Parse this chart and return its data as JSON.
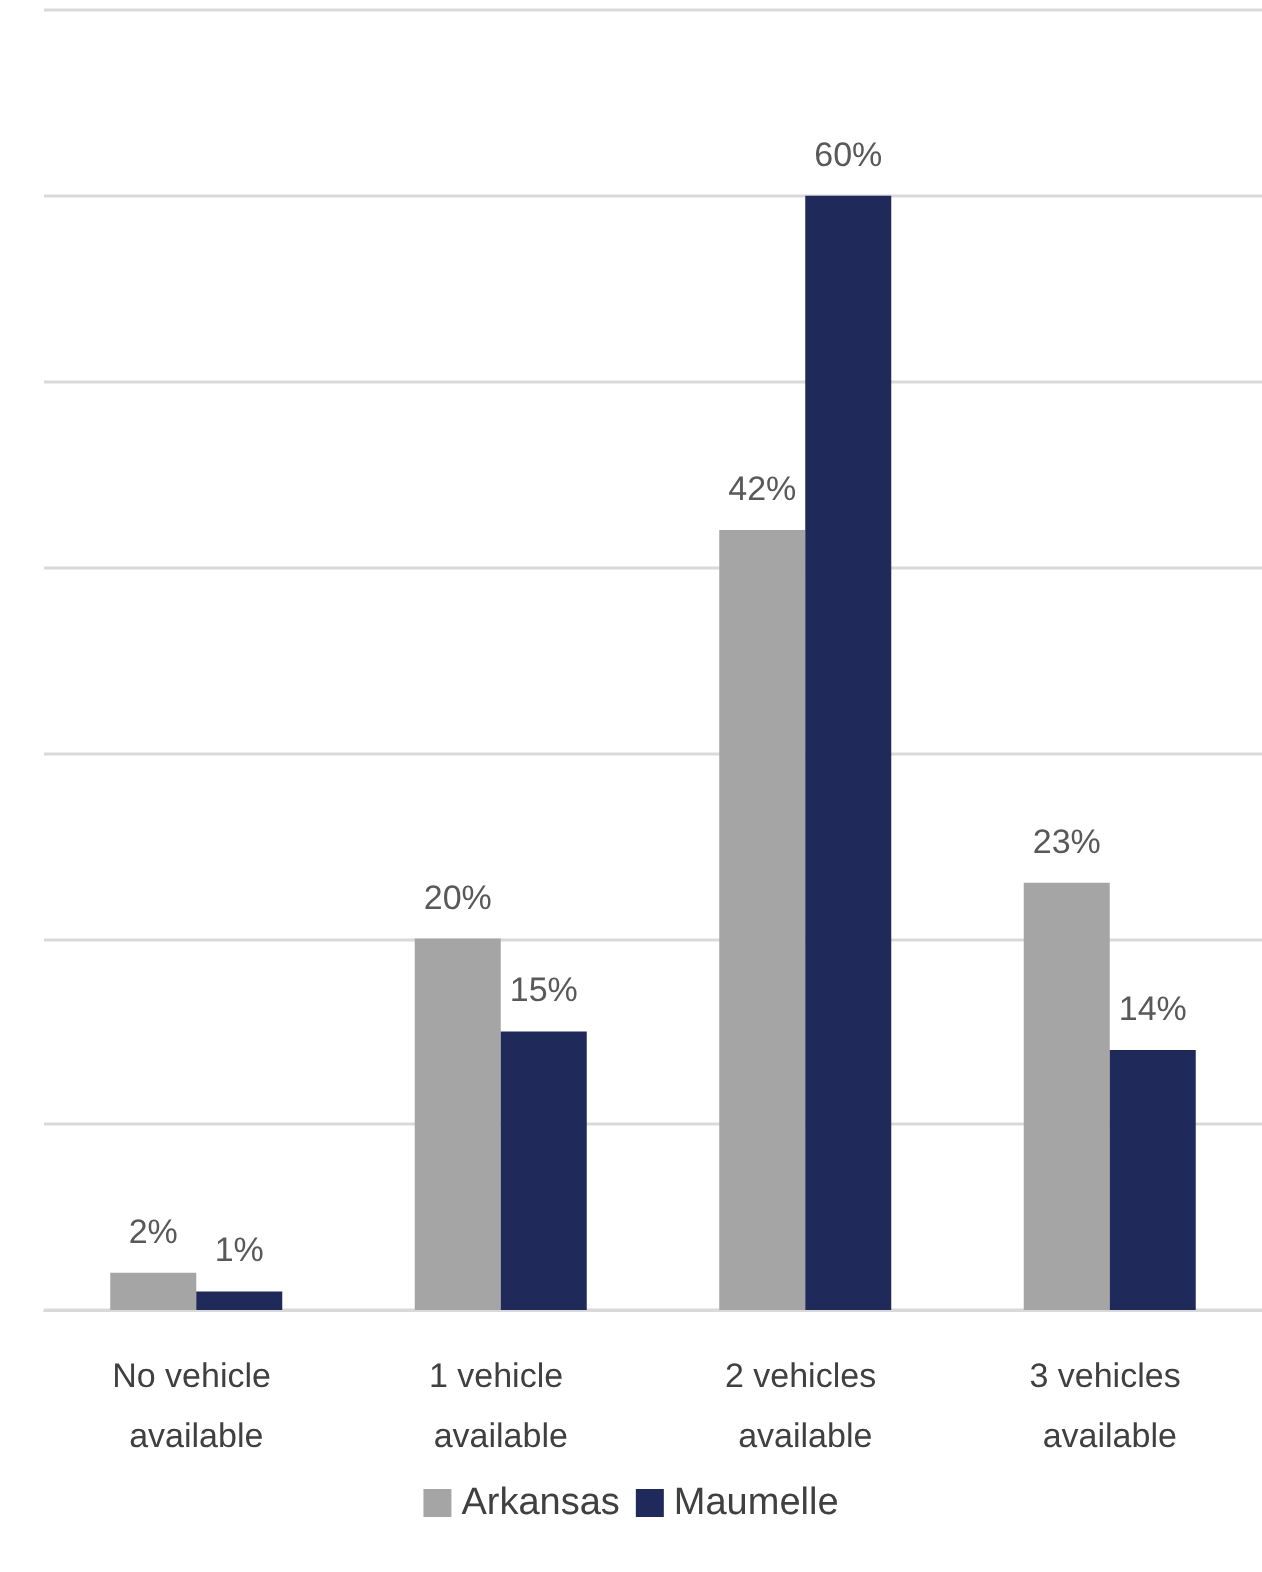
{
  "chart_data": {
    "type": "bar",
    "categories": [
      "No vehicle available",
      "1 vehicle available",
      "2 vehicles available",
      "3 vehicles available"
    ],
    "series": [
      {
        "name": "Arkansas",
        "color": "#a5a5a5",
        "values": [
          2,
          20,
          42,
          23
        ],
        "value_labels": [
          "2%",
          "20%",
          "42%",
          "23%"
        ]
      },
      {
        "name": "Maumelle",
        "color": "#1f2a5a",
        "values": [
          1,
          15,
          60,
          14
        ],
        "value_labels": [
          "1%",
          "15%",
          "60%",
          "14%"
        ]
      }
    ],
    "ylim": [
      0,
      70
    ],
    "yticks": [
      {
        "value": 0,
        "label": null
      },
      {
        "value": 10,
        "label": null
      },
      {
        "value": 20,
        "label": null
      },
      {
        "value": 30,
        "label": null
      },
      {
        "value": 40,
        "label": null
      },
      {
        "value": 50,
        "label": null
      },
      {
        "value": 60,
        "label": null
      },
      {
        "value": 70,
        "label": null
      }
    ],
    "grid": "y",
    "legend": "bottom",
    "tick_labels": "x"
  }
}
